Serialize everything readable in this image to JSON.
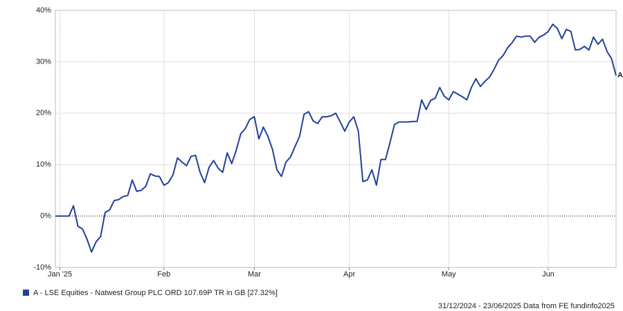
{
  "chart_data": {
    "type": "line",
    "categories": [
      null,
      "Jan '25",
      null,
      null,
      null,
      null,
      null,
      null,
      null,
      null,
      null,
      null,
      null,
      null,
      null,
      null,
      null,
      null,
      null,
      null,
      null,
      null,
      null,
      null,
      "Feb",
      null,
      null,
      null,
      null,
      null,
      null,
      null,
      null,
      null,
      null,
      null,
      null,
      null,
      null,
      null,
      null,
      null,
      null,
      null,
      "Mar",
      null,
      null,
      null,
      null,
      null,
      null,
      null,
      null,
      null,
      null,
      null,
      null,
      null,
      null,
      null,
      null,
      null,
      null,
      null,
      null,
      "Apr",
      null,
      null,
      null,
      null,
      null,
      null,
      null,
      null,
      null,
      null,
      null,
      null,
      null,
      null,
      null,
      null,
      null,
      null,
      null,
      null,
      null,
      "May",
      null,
      null,
      null,
      null,
      null,
      null,
      null,
      null,
      null,
      null,
      null,
      null,
      null,
      null,
      null,
      null,
      null,
      null,
      null,
      null,
      null,
      "Jun",
      null,
      null,
      null,
      null,
      null,
      null,
      null,
      null,
      null,
      null,
      null,
      null,
      null,
      null,
      null
    ],
    "series": [
      {
        "name": "A - LSE Equities - Natwest Group PLC ORD 107.69P TR in GB [27.32%]",
        "end_label": "A",
        "color": "#23409a",
        "values": [
          0,
          0,
          0,
          0,
          2,
          -2,
          -2.5,
          -4.5,
          -7,
          -5,
          -4,
          0.7,
          1.2,
          3,
          3.2,
          3.8,
          4,
          7,
          4.8,
          5,
          5.8,
          8.2,
          7.8,
          7.7,
          6,
          6.5,
          8,
          11.3,
          10.5,
          9.8,
          11.6,
          11.8,
          8.5,
          6.5,
          9.5,
          10.8,
          9.3,
          8.5,
          12.3,
          10.2,
          12.8,
          16,
          17,
          18.8,
          19.3,
          15,
          17.3,
          15.5,
          13,
          9,
          7.7,
          10.5,
          11.5,
          13.5,
          15.5,
          19.8,
          20.3,
          18.5,
          18,
          19.3,
          19.3,
          19.5,
          20,
          18.3,
          16.5,
          18.3,
          19.3,
          16.5,
          6.7,
          7,
          9,
          6,
          11,
          11,
          14.3,
          17.8,
          18.3,
          18.3,
          18.3,
          18.4,
          18.4,
          22.6,
          20.7,
          22.5,
          22.9,
          25,
          23.3,
          22.6,
          24.2,
          23.7,
          23.2,
          22.6,
          25,
          26.7,
          25.2,
          26.2,
          27,
          28.5,
          30.3,
          31.2,
          32.7,
          33.7,
          35,
          34.8,
          35,
          35,
          33.8,
          34.8,
          35.2,
          35.9,
          37.3,
          36.5,
          34.5,
          36.3,
          35.9,
          32.3,
          32.4,
          33,
          32.3,
          34.8,
          33.4,
          34.4,
          32,
          30.6,
          27.32
        ]
      }
    ],
    "ylim": [
      -10,
      40
    ],
    "yticks": [
      {
        "value": -10,
        "label": "-10%"
      },
      {
        "value": 0,
        "label": "0%"
      },
      {
        "value": 10,
        "label": "10%"
      },
      {
        "value": 20,
        "label": "20%"
      },
      {
        "value": 30,
        "label": "30%"
      },
      {
        "value": 40,
        "label": "40%"
      }
    ],
    "grid": true,
    "footer": "31/12/2024 - 23/06/2025 Data from FE fundinfo2025"
  }
}
